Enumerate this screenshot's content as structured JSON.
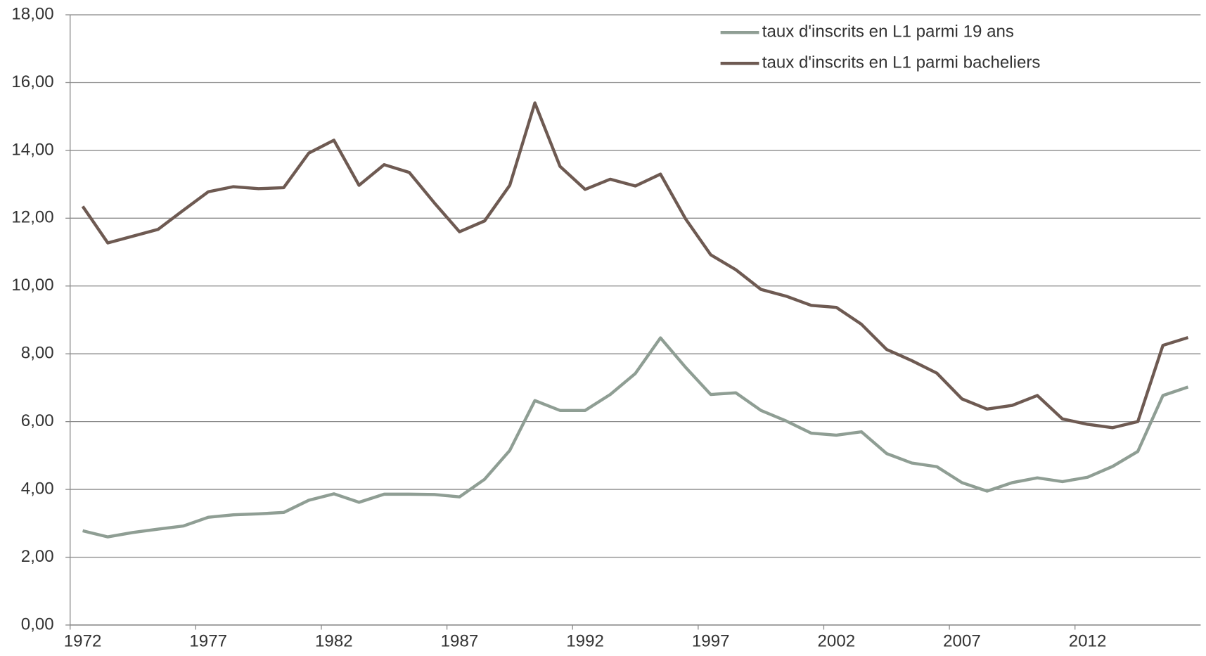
{
  "chart_data": {
    "type": "line",
    "categories": [
      "1972",
      null,
      null,
      null,
      null,
      "1977",
      null,
      null,
      null,
      null,
      "1982",
      null,
      null,
      null,
      null,
      "1987",
      null,
      null,
      null,
      null,
      "1992",
      null,
      null,
      null,
      null,
      "1997",
      null,
      null,
      null,
      null,
      "2002",
      null,
      null,
      null,
      null,
      "2007",
      null,
      null,
      null,
      null,
      "2012",
      null,
      null,
      null,
      null
    ],
    "series": [
      {
        "name": "taux d'inscrits en L1 parmi 19 ans",
        "color": "#8f9e94",
        "values": [
          2.78,
          2.6,
          2.73,
          2.83,
          2.92,
          3.18,
          3.25,
          3.28,
          3.32,
          3.68,
          3.87,
          3.62,
          3.86,
          3.86,
          3.85,
          3.78,
          4.3,
          5.15,
          6.62,
          6.33,
          6.33,
          6.8,
          7.42,
          8.47,
          7.6,
          6.8,
          6.85,
          6.33,
          6.02,
          5.66,
          5.6,
          5.7,
          5.06,
          4.78,
          4.67,
          4.2,
          3.95,
          4.2,
          4.34,
          4.23,
          4.36,
          4.68,
          5.12,
          6.77,
          7.02
        ]
      },
      {
        "name": "taux d'inscrits en L1 parmi bacheliers",
        "color": "#6e5a52",
        "values": [
          12.35,
          11.27,
          11.47,
          11.67,
          12.23,
          12.78,
          12.93,
          12.87,
          12.9,
          13.92,
          14.3,
          12.97,
          13.58,
          13.35,
          12.45,
          11.6,
          11.92,
          12.97,
          15.4,
          13.53,
          12.85,
          13.15,
          12.95,
          13.3,
          11.98,
          10.92,
          10.48,
          9.9,
          9.7,
          9.43,
          9.37,
          8.87,
          8.13,
          7.8,
          7.43,
          6.67,
          6.37,
          6.48,
          6.77,
          6.08,
          5.92,
          5.82,
          6.0,
          8.25,
          8.48
        ]
      }
    ],
    "ylim": [
      0,
      18
    ],
    "yticks": [
      {
        "value": 0,
        "label": "0,00"
      },
      {
        "value": 2,
        "label": "2,00"
      },
      {
        "value": 4,
        "label": "4,00"
      },
      {
        "value": 6,
        "label": "6,00"
      },
      {
        "value": 8,
        "label": "8,00"
      },
      {
        "value": 10,
        "label": "10,00"
      },
      {
        "value": 12,
        "label": "12,00"
      },
      {
        "value": 14,
        "label": "14,00"
      },
      {
        "value": 16,
        "label": "16,00"
      },
      {
        "value": 18,
        "label": "18,00"
      }
    ],
    "grid": true,
    "legend": "top-right"
  }
}
